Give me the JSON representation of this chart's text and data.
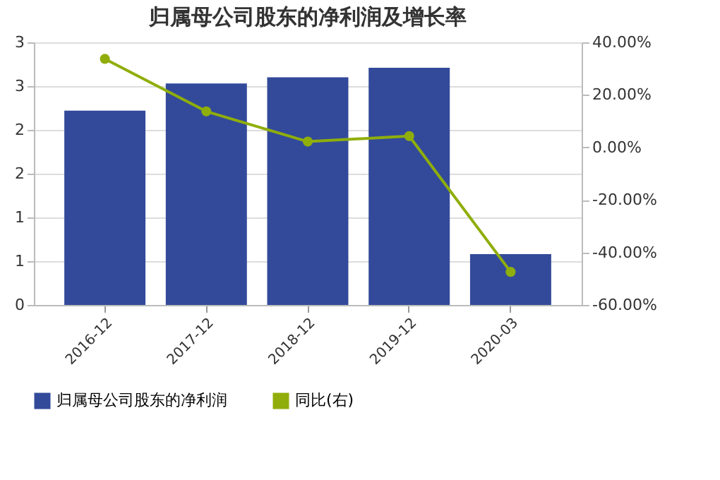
{
  "chart_data": {
    "type": "bar",
    "title": "归属母公司股东的净利润及增长率",
    "categories": [
      "2016-12",
      "2017-12",
      "2018-12",
      "2019-12",
      "2020-03"
    ],
    "series": [
      {
        "name": "归属母公司股东的净利润",
        "color": "#334a9a",
        "values": [
          2.22,
          2.53,
          2.6,
          2.71,
          0.58
        ]
      },
      {
        "name": "同比(右)",
        "type": "line",
        "axis": "y2",
        "color": "#8fae0b",
        "marker": "circle",
        "values": [
          33.7,
          13.7,
          2.2,
          4.3,
          -47.4
        ]
      }
    ],
    "ylim": [
      0,
      3
    ],
    "yticks": [
      0,
      {
        "value": 0.5,
        "label": "1"
      },
      1,
      {
        "value": 1.5,
        "label": "2"
      },
      2,
      {
        "value": 2.5,
        "label": "3"
      },
      3
    ],
    "y2lim": [
      -60,
      40
    ],
    "y2ticks": [
      {
        "value": -60,
        "label": "-60.00%"
      },
      {
        "value": -40,
        "label": "-40.00%"
      },
      {
        "value": -20,
        "label": "-20.00%"
      },
      {
        "value": 0,
        "label": "0.00%"
      },
      {
        "value": 20,
        "label": "20.00%"
      },
      {
        "value": 40,
        "label": "40.00%"
      }
    ],
    "grid": "y",
    "legend": "bottom"
  }
}
